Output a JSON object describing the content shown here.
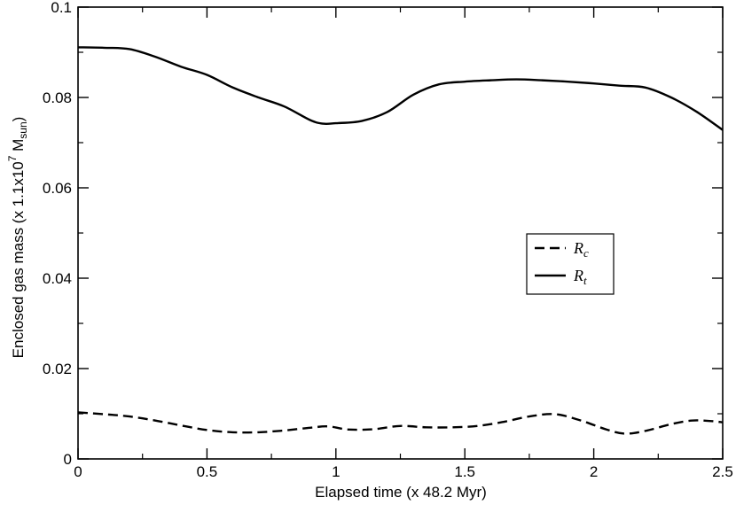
{
  "chart_data": {
    "type": "line",
    "xlabel": "Elapsed time (x 48.2 Myr)",
    "ylabel": {
      "prefix": "Enclosed gas mass (x 1.1x10",
      "exponent": "7",
      "unit": " M",
      "unit_sub": "sun",
      "suffix": ")"
    },
    "xlim": [
      0,
      2.5
    ],
    "ylim": [
      0,
      0.1
    ],
    "xticks": [
      "0",
      "0.5",
      "1",
      "1.5",
      "2",
      "2.5"
    ],
    "yticks": [
      "0",
      "0.02",
      "0.04",
      "0.06",
      "0.08",
      "0.1"
    ],
    "grid": false,
    "legend_position": "right-middle",
    "series": [
      {
        "name": "R",
        "name_sub": "c",
        "style": "dashed",
        "color": "#000000",
        "x": [
          0,
          0.1,
          0.2,
          0.3,
          0.4,
          0.5,
          0.6,
          0.7,
          0.8,
          0.9,
          0.97,
          1.05,
          1.15,
          1.25,
          1.35,
          1.45,
          1.55,
          1.65,
          1.75,
          1.85,
          1.95,
          2.05,
          2.12,
          2.2,
          2.3,
          2.38,
          2.45,
          2.5
        ],
        "y": [
          0.0103,
          0.0099,
          0.0094,
          0.0085,
          0.0074,
          0.0064,
          0.0059,
          0.0059,
          0.0063,
          0.0069,
          0.0072,
          0.0065,
          0.0066,
          0.0073,
          0.007,
          0.007,
          0.0073,
          0.0082,
          0.0094,
          0.0099,
          0.0085,
          0.0065,
          0.0056,
          0.0062,
          0.0077,
          0.0085,
          0.0084,
          0.0081
        ]
      },
      {
        "name": "R",
        "name_sub": "t",
        "style": "solid",
        "color": "#000000",
        "x": [
          0,
          0.1,
          0.2,
          0.3,
          0.4,
          0.5,
          0.6,
          0.7,
          0.8,
          0.9,
          0.95,
          1.0,
          1.1,
          1.2,
          1.3,
          1.4,
          1.5,
          1.6,
          1.7,
          1.8,
          1.9,
          2.0,
          2.1,
          2.2,
          2.3,
          2.4,
          2.5
        ],
        "y": [
          0.0911,
          0.091,
          0.0907,
          0.089,
          0.0868,
          0.085,
          0.0822,
          0.08,
          0.078,
          0.075,
          0.0742,
          0.0743,
          0.0748,
          0.0768,
          0.0806,
          0.0829,
          0.0835,
          0.0838,
          0.084,
          0.0838,
          0.0835,
          0.0831,
          0.0826,
          0.0822,
          0.08,
          0.0768,
          0.0728
        ]
      }
    ]
  }
}
